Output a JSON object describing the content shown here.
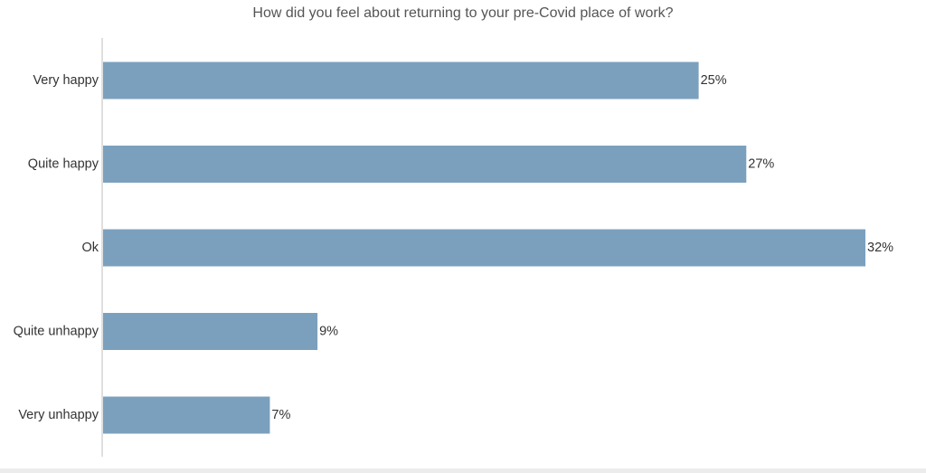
{
  "chart_data": {
    "type": "bar",
    "orientation": "horizontal",
    "title": "How did you feel about returning to your pre-Covid place of work?",
    "categories": [
      "Very happy",
      "Quite happy",
      "Ok",
      "Quite unhappy",
      "Very unhappy"
    ],
    "values": [
      25,
      27,
      32,
      9,
      7
    ],
    "value_labels": [
      "25%",
      "27%",
      "32%",
      "9%",
      "7%"
    ],
    "value_unit": "%",
    "xlim": [
      0,
      32
    ],
    "grid": false,
    "legend": "none",
    "bar_color": "#7ba0be",
    "axis_color": "#bfbfbf"
  }
}
